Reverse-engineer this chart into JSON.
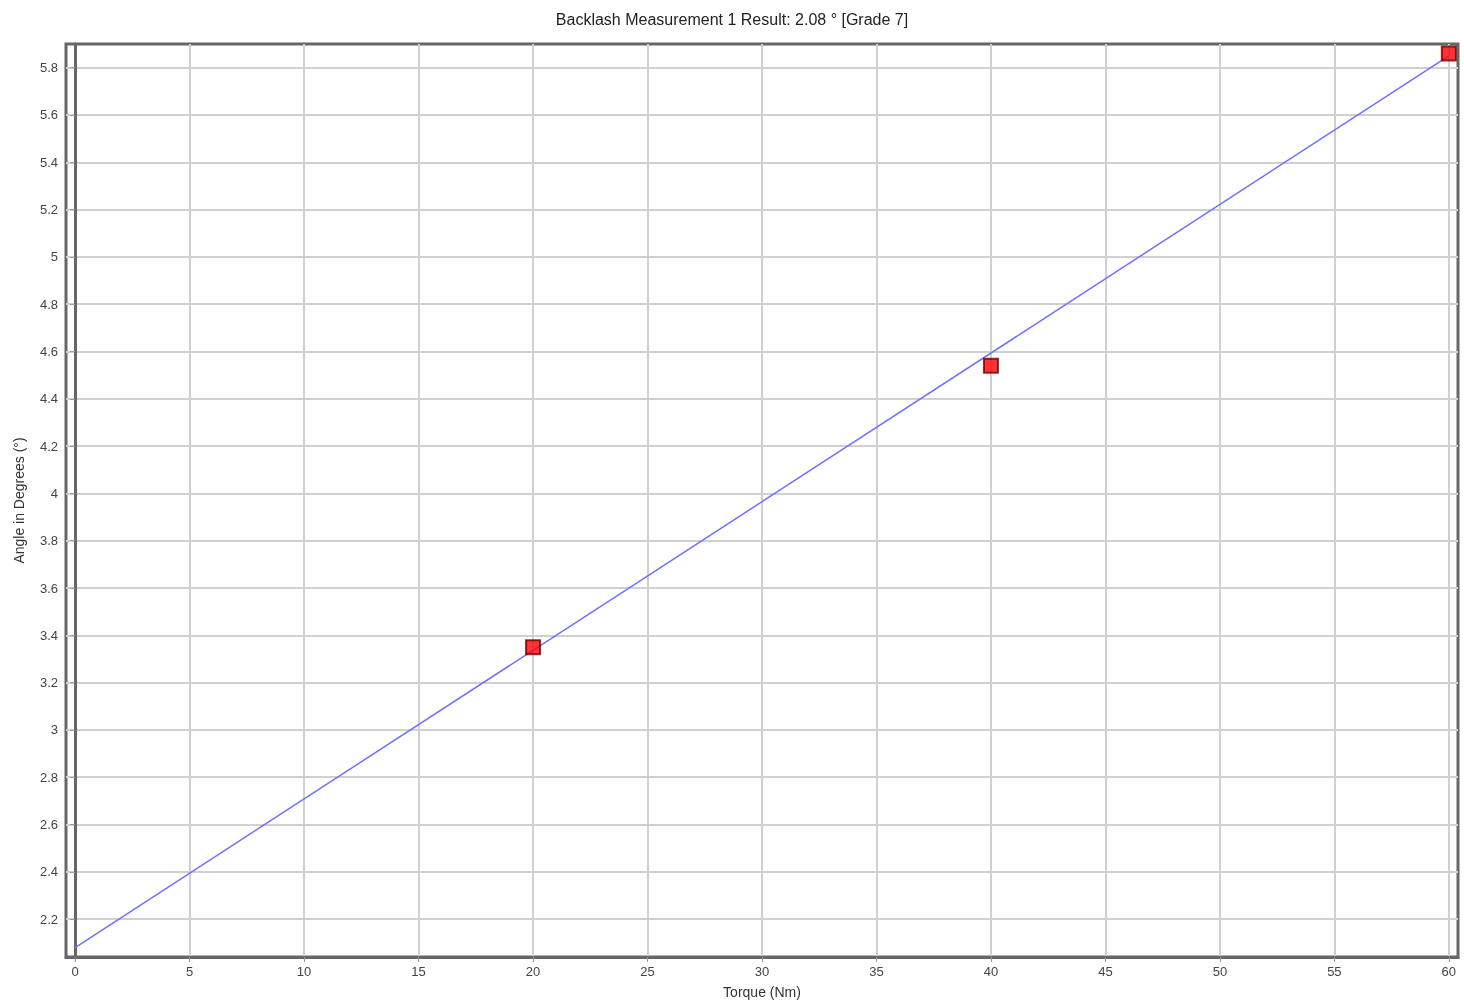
{
  "chart_data": {
    "type": "scatter",
    "title": "Backlash Measurement 1 Result: 2.08 ° [Grade 7]",
    "xlabel": "Torque (Nm)",
    "ylabel": "Angle in Degrees (°)",
    "xlim": [
      -0.4,
      60.4
    ],
    "xticks": [
      0,
      5,
      10,
      15,
      20,
      25,
      30,
      35,
      40,
      45,
      50,
      55,
      60
    ],
    "ylim": [
      2.04,
      5.9
    ],
    "yticks": [
      2.2,
      2.4,
      2.6,
      2.8,
      3,
      3.2,
      3.4,
      3.6,
      3.8,
      4,
      4.2,
      4.4,
      4.6,
      4.8,
      5,
      5.2,
      5.4,
      5.6,
      5.8
    ],
    "grid": true,
    "series": [
      {
        "type": "line",
        "color": "#7070ff",
        "x": [
          0,
          60
        ],
        "values": [
          2.08,
          5.85
        ],
        "marker": "none",
        "line_style": "solid"
      },
      {
        "color": "#ff0000",
        "x": [
          20,
          40,
          60
        ],
        "values": [
          3.35,
          4.54,
          5.86
        ],
        "marker": "square"
      }
    ]
  }
}
